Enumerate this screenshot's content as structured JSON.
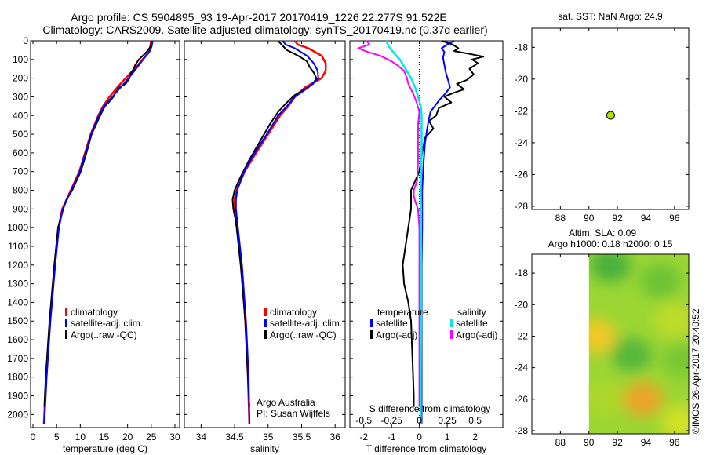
{
  "header": {
    "line1": "Argo profile: CS 5904895_93 19-Apr-2017 20170419_1226 22.277S 91.522E",
    "line2": "Climatology: CARS2009. Satellite-adjusted climatology: synTS_20170419.nc (0.37d earlier)"
  },
  "depth_ticks": [
    "0",
    "100",
    "200",
    "300",
    "400",
    "500",
    "600",
    "700",
    "800",
    "900",
    "1000",
    "1100",
    "1200",
    "1300",
    "1400",
    "1500",
    "1600",
    "1700",
    "1800",
    "1900",
    "2000"
  ],
  "colors": {
    "climatology": "#ff0000",
    "satellite": "#0000ff",
    "argo": "#000000",
    "sal_sat": "#00e8e8",
    "sal_argo": "#ff00ff",
    "point": "#b4e000"
  },
  "chart_data": [
    {
      "id": "temperature",
      "type": "line",
      "xlabel": "temperature (deg C)",
      "ylabel": "",
      "xlim": [
        -0.5,
        31
      ],
      "ylim": [
        2070,
        0
      ],
      "xticks": [
        "0",
        "5",
        "10",
        "15",
        "20",
        "25",
        "30"
      ],
      "legend": [
        "climatology",
        "satellite-adj. clim.",
        "Argo(..raw -QC)"
      ],
      "series": [
        {
          "name": "climatology",
          "depth": [
            0,
            30,
            60,
            90,
            150,
            200,
            250,
            300,
            350,
            400,
            500,
            600,
            700,
            800,
            900,
            1000,
            1200,
            1500,
            1800,
            2050
          ],
          "values": [
            25.0,
            24.8,
            24.5,
            23.5,
            21.5,
            19.6,
            17.8,
            16.2,
            14.8,
            13.8,
            12.2,
            11.0,
            9.8,
            8.0,
            6.2,
            5.4,
            4.6,
            3.6,
            2.8,
            2.3
          ]
        },
        {
          "name": "satellite-adj. clim.",
          "depth": [
            0,
            30,
            60,
            90,
            150,
            200,
            250,
            300,
            350,
            400,
            500,
            600,
            700,
            800,
            900,
            1000,
            1200,
            1500,
            1800,
            2050
          ],
          "values": [
            25.3,
            25.1,
            24.6,
            23.6,
            21.8,
            20.2,
            18.5,
            16.8,
            15.0,
            13.9,
            12.3,
            11.1,
            9.9,
            8.1,
            6.3,
            5.5,
            4.7,
            3.7,
            2.9,
            2.4
          ]
        },
        {
          "name": "Argo(..raw -QC)",
          "depth": [
            0,
            30,
            60,
            80,
            100,
            130,
            150,
            180,
            200,
            230,
            250,
            280,
            300,
            330,
            350,
            400,
            500,
            600,
            700,
            800,
            850,
            900,
            1000,
            1200,
            1500,
            1800,
            1960
          ],
          "values": [
            25.1,
            24.9,
            24.0,
            23.2,
            22.4,
            21.6,
            21.3,
            20.5,
            20.4,
            19.6,
            18.2,
            17.4,
            17.0,
            16.0,
            15.2,
            14.2,
            12.4,
            11.3,
            10.1,
            8.3,
            7.1,
            6.4,
            5.3,
            4.5,
            3.5,
            2.7,
            2.4
          ]
        }
      ]
    },
    {
      "id": "salinity",
      "type": "line",
      "xlabel": "salinity",
      "ylabel": "",
      "xlim": [
        33.75,
        36.15
      ],
      "ylim": [
        2070,
        0
      ],
      "xticks": [
        "34",
        "34.5",
        "35",
        "35.5",
        "36"
      ],
      "legend": [
        "climatology",
        "satellite-adj. clim.",
        "Argo(..raw -QC)"
      ],
      "annotation": [
        "Argo Australia",
        "PI: Susan Wijffels"
      ],
      "series": [
        {
          "name": "climatology",
          "depth": [
            0,
            20,
            40,
            80,
            120,
            160,
            200,
            250,
            300,
            350,
            400,
            500,
            600,
            700,
            800,
            850,
            900,
            1000,
            1200,
            1500,
            1800,
            2050
          ],
          "values": [
            35.4,
            35.44,
            35.6,
            35.8,
            35.86,
            35.86,
            35.8,
            35.55,
            35.4,
            35.3,
            35.18,
            35.0,
            34.82,
            34.65,
            34.53,
            34.5,
            34.5,
            34.54,
            34.6,
            34.66,
            34.7,
            34.72
          ]
        },
        {
          "name": "satellite-adj. clim.",
          "depth": [
            0,
            20,
            40,
            80,
            120,
            160,
            200,
            250,
            300,
            350,
            400,
            500,
            600,
            700,
            800,
            850,
            900,
            1000,
            1200,
            1500,
            1800,
            2050
          ],
          "values": [
            35.22,
            35.26,
            35.4,
            35.58,
            35.68,
            35.74,
            35.75,
            35.6,
            35.4,
            35.28,
            35.15,
            34.98,
            34.8,
            34.64,
            34.54,
            34.52,
            34.52,
            34.55,
            34.61,
            34.67,
            34.71,
            34.72
          ]
        },
        {
          "name": "Argo(..raw -QC)",
          "depth": [
            0,
            20,
            50,
            80,
            110,
            140,
            170,
            200,
            230,
            260,
            290,
            330,
            380,
            450,
            550,
            650,
            750,
            800,
            850,
            900,
            950,
            1000,
            1200,
            1500,
            1800,
            1960
          ],
          "values": [
            35.15,
            35.2,
            35.28,
            35.45,
            35.58,
            35.62,
            35.68,
            35.72,
            35.67,
            35.55,
            35.4,
            35.28,
            35.15,
            35.02,
            34.86,
            34.7,
            34.56,
            34.5,
            34.47,
            34.48,
            34.51,
            34.53,
            34.59,
            34.66,
            34.7,
            34.72
          ]
        }
      ]
    },
    {
      "id": "differences",
      "type": "line",
      "xlabel": "T difference from climatology",
      "xlabel_top": "S difference from climatology",
      "xlim": [
        -2.5,
        3.0
      ],
      "ylim": [
        2070,
        0
      ],
      "xticks": [
        "-2",
        "-1",
        "0",
        "1",
        "2"
      ],
      "s_xticks": [
        "-0.5",
        "-0.25",
        "0",
        "0.25",
        "0.5"
      ],
      "s_values_at_t": [
        -2,
        -1,
        0,
        1,
        2
      ],
      "legend_headers": [
        "temperature",
        "salinity"
      ],
      "legend": [
        "satellite",
        "Argo(-adj)",
        "satellite",
        "Argo(-adj)"
      ],
      "series": [
        {
          "name": "temperature satellite",
          "depth": [
            0,
            20,
            40,
            60,
            90,
            130,
            170,
            220,
            250,
            280,
            320,
            380,
            450,
            550,
            650,
            800,
            900,
            1000,
            1200,
            1500,
            1800,
            2050
          ],
          "values": [
            1.25,
            1.0,
            0.8,
            0.9,
            0.85,
            0.9,
            0.95,
            1.05,
            1.1,
            0.95,
            0.7,
            0.4,
            0.3,
            0.2,
            0.15,
            0.1,
            0.1,
            0.1,
            0.08,
            0.08,
            0.08,
            0.08
          ]
        },
        {
          "name": "temperature Argo(-adj)",
          "depth": [
            0,
            20,
            40,
            55,
            70,
            85,
            100,
            120,
            150,
            180,
            210,
            230,
            260,
            280,
            300,
            330,
            360,
            400,
            430,
            470,
            520,
            600,
            700,
            800,
            900,
            1000,
            1100,
            1200,
            1300,
            1400,
            1500,
            1700,
            1900,
            1960
          ],
          "values": [
            0.8,
            1.2,
            1.4,
            1.25,
            1.8,
            2.3,
            1.9,
            2.1,
            1.8,
            1.95,
            1.7,
            1.35,
            1.6,
            1.2,
            0.9,
            1.15,
            0.7,
            0.6,
            0.35,
            0.5,
            0.2,
            0.1,
            0.0,
            -0.3,
            -0.3,
            -0.4,
            -0.5,
            -0.6,
            -0.55,
            -0.4,
            -0.3,
            -0.25,
            -0.2,
            -0.2
          ]
        },
        {
          "name": "salinity satellite",
          "depth": [
            0,
            30,
            60,
            100,
            150,
            200,
            250,
            300,
            350,
            400,
            500,
            600,
            700,
            800,
            900,
            1000,
            1200,
            1500,
            1800,
            2050
          ],
          "values": [
            -1.2,
            -1.1,
            -0.95,
            -0.7,
            -0.5,
            -0.3,
            -0.15,
            -0.05,
            0.05,
            0.08,
            0.08,
            0.08,
            0.06,
            0.05,
            0.06,
            0.06,
            0.06,
            0.06,
            0.05,
            0.05
          ]
        },
        {
          "name": "salinity Argo(-adj)",
          "depth": [
            0,
            20,
            40,
            60,
            80,
            110,
            130,
            160,
            200,
            230,
            260,
            290,
            330,
            380,
            450,
            550,
            650,
            750,
            800,
            830,
            860,
            900,
            1000,
            1200,
            1500,
            1800,
            1960
          ],
          "values": [
            -1.9,
            -1.8,
            -2.2,
            -1.85,
            -1.4,
            -1.0,
            -0.8,
            -0.55,
            -0.45,
            -0.4,
            -0.3,
            -0.2,
            -0.1,
            0.0,
            -0.05,
            -0.05,
            -0.05,
            -0.08,
            -0.2,
            -0.2,
            -0.15,
            -0.05,
            0.0,
            0.0,
            0.0,
            0.0,
            0.0
          ]
        }
      ]
    },
    {
      "id": "position-map",
      "type": "scatter",
      "title": "sat. SST: NaN Argo: 24.9",
      "xlim": [
        86,
        97
      ],
      "ylim": [
        -28.2,
        -16.8
      ],
      "xticks": [
        "88",
        "90",
        "92",
        "94",
        "96"
      ],
      "yticks": [
        "-18",
        "-20",
        "-22",
        "-24",
        "-26",
        "-28"
      ],
      "points": [
        {
          "lon": 91.522,
          "lat": -22.277
        }
      ]
    },
    {
      "id": "altimetry-map",
      "type": "heatmap",
      "title": [
        "Altim. SLA: 0.09",
        "Argo h1000: 0.18 h2000: 0.15"
      ],
      "xlim": [
        86,
        97
      ],
      "ylim": [
        -28.2,
        -16.8
      ],
      "xticks": [
        "88",
        "90",
        "92",
        "94",
        "96"
      ],
      "yticks": [
        "-18",
        "-20",
        "-22",
        "-24",
        "-26",
        "-28"
      ],
      "data_xlim": [
        90,
        97
      ],
      "blobs": [
        {
          "lon": 91.5,
          "lat": -17.5,
          "level": 0.15
        },
        {
          "lon": 95.0,
          "lat": -18.5,
          "level": 0.3
        },
        {
          "lon": 96.0,
          "lat": -21.0,
          "level": 0.55
        },
        {
          "lon": 90.5,
          "lat": -22.0,
          "level": 0.8
        },
        {
          "lon": 93.0,
          "lat": -23.2,
          "level": 0.2
        },
        {
          "lon": 96.5,
          "lat": -23.5,
          "level": 0.35
        },
        {
          "lon": 91.0,
          "lat": -26.0,
          "level": 0.5
        },
        {
          "lon": 93.8,
          "lat": -26.0,
          "level": 1.0
        },
        {
          "lon": 96.5,
          "lat": -27.5,
          "level": 0.6
        }
      ]
    }
  ],
  "credit": "©IMOS 26-Apr-2017 20:40:52"
}
